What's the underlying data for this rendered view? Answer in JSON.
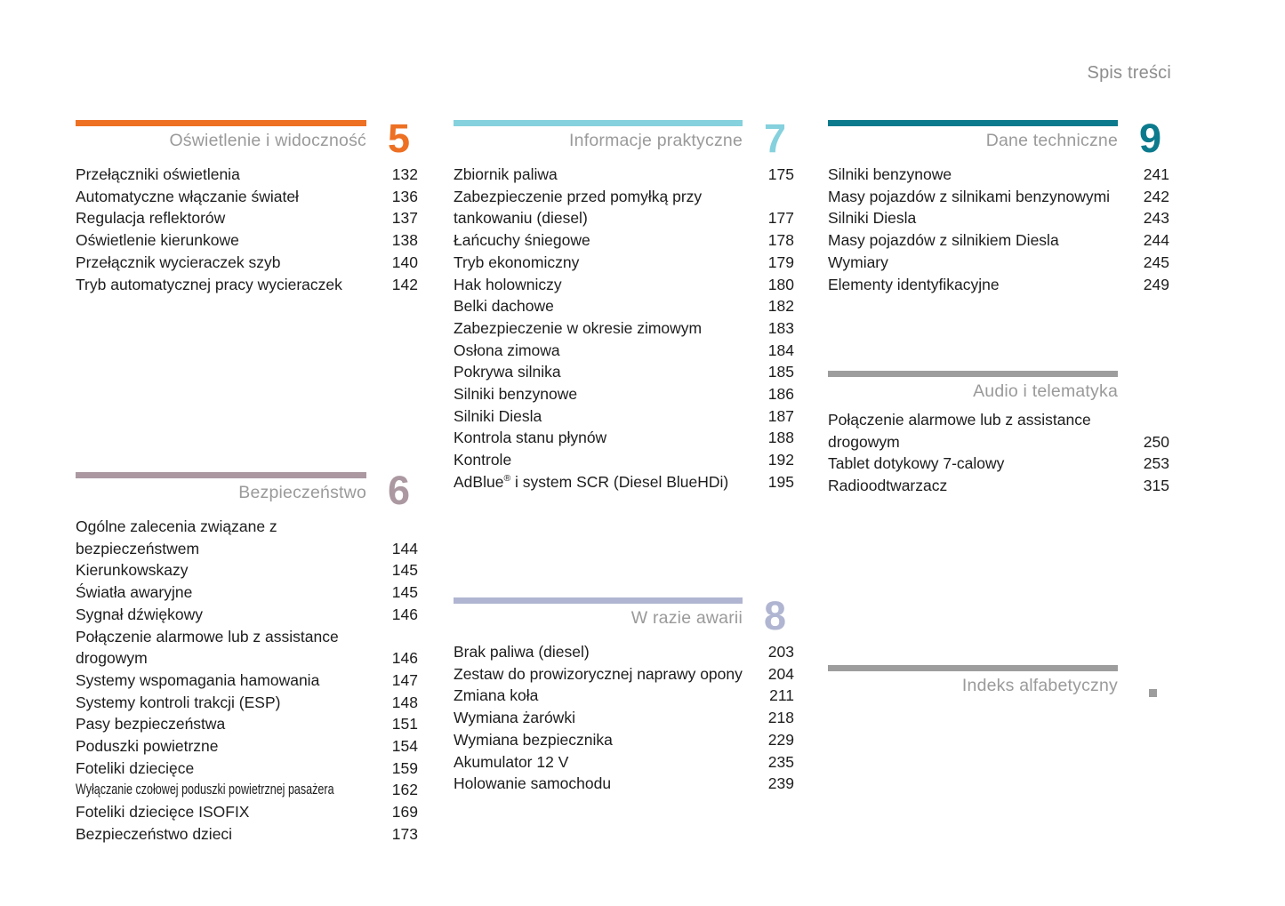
{
  "page": {
    "header": "Spis treści"
  },
  "colors": {
    "section5_accent": "#ED7023",
    "section6_accent": "#AB98A1",
    "section7_accent": "#85D1DD",
    "section8_accent": "#B0B5D1",
    "section9_accent": "#0C7A8D",
    "neutral_accent": "#9D9D9D",
    "title_gray": "#9A9A9A"
  },
  "sections": [
    {
      "id": "sec5",
      "number": "5",
      "title": "Oświetlenie i widoczność",
      "accent": "#ED7023",
      "items": [
        {
          "label": "Przełączniki oświetlenia",
          "page": "132"
        },
        {
          "label": "Automatyczne włączanie świateł",
          "page": "136"
        },
        {
          "label": "Regulacja reflektorów",
          "page": "137"
        },
        {
          "label": "Oświetlenie kierunkowe",
          "page": "138"
        },
        {
          "label": "Przełącznik wycieraczek szyb",
          "page": "140"
        },
        {
          "label": "Tryb automatycznej pracy wycieraczek",
          "page": "142"
        }
      ]
    },
    {
      "id": "sec6",
      "number": "6",
      "title": "Bezpieczeństwo",
      "accent": "#AB98A1",
      "items": [
        {
          "label": "Ogólne zalecenia związane z\nbezpieczeństwem",
          "page": "144"
        },
        {
          "label": "Kierunkowskazy",
          "page": "145"
        },
        {
          "label": "Światła awaryjne",
          "page": "145"
        },
        {
          "label": "Sygnał dźwiękowy",
          "page": "146"
        },
        {
          "label": "Połączenie alarmowe lub z assistance\ndrogowym",
          "page": "146"
        },
        {
          "label": "Systemy wspomagania hamowania",
          "page": "147"
        },
        {
          "label": "Systemy kontroli trakcji (ESP)",
          "page": "148"
        },
        {
          "label": "Pasy bezpieczeństwa",
          "page": "151"
        },
        {
          "label": "Poduszki powietrzne",
          "page": "154"
        },
        {
          "label": "Foteliki dziecięce",
          "page": "159"
        },
        {
          "label": "Wyłączanie czołowej poduszki powietrznej pasażera",
          "page": "162",
          "condensed": true
        },
        {
          "label": "Foteliki dziecięce ISOFIX",
          "page": "169"
        },
        {
          "label": "Bezpieczeństwo dzieci",
          "page": "173"
        }
      ]
    },
    {
      "id": "sec7",
      "number": "7",
      "title": "Informacje praktyczne",
      "accent": "#85D1DD",
      "items": [
        {
          "label": "Zbiornik paliwa",
          "page": "175"
        },
        {
          "label": "Zabezpieczenie przed pomyłką przy\ntankowaniu (diesel)",
          "page": "177"
        },
        {
          "label": "Łańcuchy śniegowe",
          "page": "178"
        },
        {
          "label": "Tryb ekonomiczny",
          "page": "179"
        },
        {
          "label": "Hak holowniczy",
          "page": "180"
        },
        {
          "label": "Belki dachowe",
          "page": "182"
        },
        {
          "label": "Zabezpieczenie w okresie zimowym",
          "page": "183"
        },
        {
          "label": "Osłona zimowa",
          "page": "184"
        },
        {
          "label": "Pokrywa silnika",
          "page": "185"
        },
        {
          "label": "Silniki benzynowe",
          "page": "186"
        },
        {
          "label": "Silniki Diesla",
          "page": "187"
        },
        {
          "label": "Kontrola stanu płynów",
          "page": "188"
        },
        {
          "label": "Kontrole",
          "page": "192"
        },
        {
          "label": "AdBlue® i system SCR (Diesel BlueHDi)",
          "page": "195"
        }
      ]
    },
    {
      "id": "sec8",
      "number": "8",
      "title": "W razie awarii",
      "accent": "#B0B5D1",
      "items": [
        {
          "label": "Brak paliwa (diesel)",
          "page": "203"
        },
        {
          "label": "Zestaw do prowizorycznej naprawy opony",
          "page": "204"
        },
        {
          "label": "Zmiana koła",
          "page": "211"
        },
        {
          "label": "Wymiana żarówki",
          "page": "218"
        },
        {
          "label": "Wymiana bezpiecznika",
          "page": "229"
        },
        {
          "label": "Akumulator 12 V",
          "page": "235"
        },
        {
          "label": "Holowanie samochodu",
          "page": "239"
        }
      ]
    },
    {
      "id": "sec9",
      "number": "9",
      "title": "Dane techniczne",
      "accent": "#0C7A8D",
      "items": [
        {
          "label": "Silniki benzynowe",
          "page": "241"
        },
        {
          "label": "Masy pojazdów z silnikami benzynowymi",
          "page": "242"
        },
        {
          "label": "Silniki Diesla",
          "page": "243"
        },
        {
          "label": "Masy pojazdów z silnikiem Diesla",
          "page": "244"
        },
        {
          "label": "Wymiary",
          "page": "245"
        },
        {
          "label": "Elementy identyfikacyjne",
          "page": "249"
        }
      ]
    },
    {
      "id": "audio",
      "number": "",
      "title": "Audio i telematyka",
      "accent": "#9D9D9D",
      "items": [
        {
          "label": "Połączenie alarmowe lub z assistance\ndrogowym",
          "page": "250"
        },
        {
          "label": "Tablet dotykowy 7-calowy",
          "page": "253"
        },
        {
          "label": "Radioodtwarzacz",
          "page": "315"
        }
      ]
    },
    {
      "id": "indeks",
      "number": "",
      "marker": "square",
      "title": "Indeks alfabetyczny",
      "accent": "#9D9D9D",
      "items": []
    }
  ]
}
